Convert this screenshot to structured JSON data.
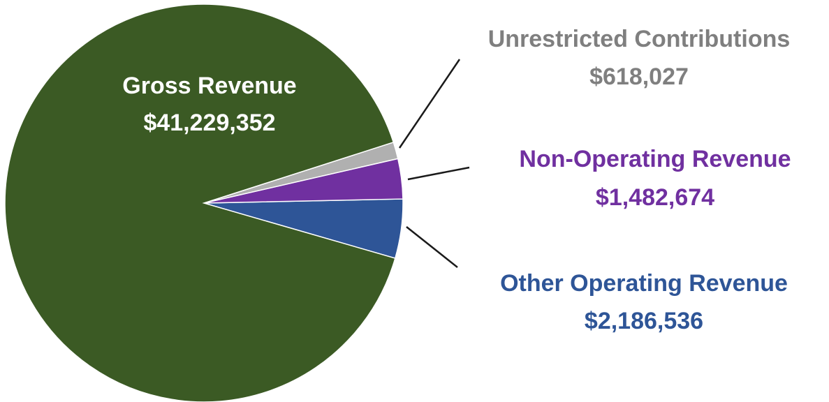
{
  "chart_data": {
    "type": "pie",
    "categories": [
      "Other Operating Revenue",
      "Non-Operating Revenue",
      "Unrestricted Contributions",
      "Gross Revenue"
    ],
    "values": [
      2186536,
      1482674,
      618027,
      41229352
    ],
    "value_labels": [
      "$2,186,536",
      "$1,482,674",
      "$618,027",
      "$41,229,352"
    ],
    "colors": [
      "#2e5597",
      "#7030a0",
      "#b0b0b0",
      "#3b5a24"
    ],
    "label_colors": [
      "#2e5597",
      "#7030a0",
      "#7f7f7f",
      "#ffffff"
    ]
  }
}
